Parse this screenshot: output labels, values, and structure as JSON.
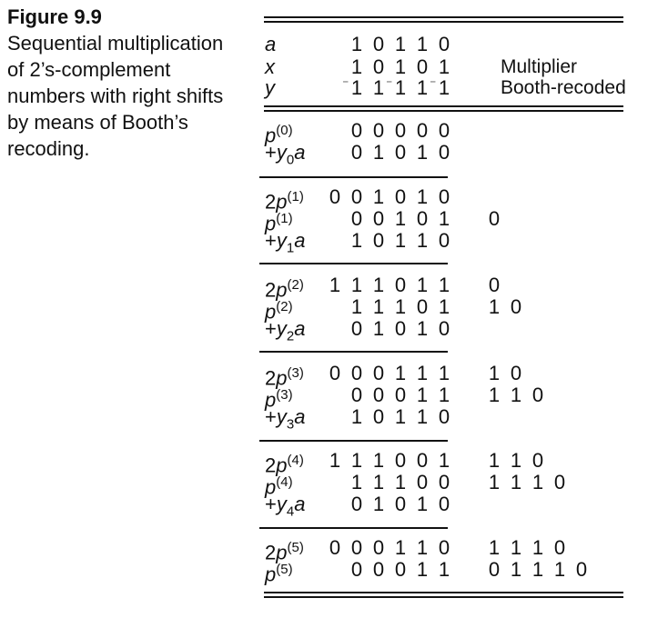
{
  "caption": {
    "figure_label": "Figure 9.9",
    "text": "Sequential multiplication of 2’s-complement numbers with right shifts by means of Booth’s recoding."
  },
  "header_rows": [
    {
      "label": "a",
      "digits": [
        "1",
        "0",
        "1",
        "1",
        "0"
      ],
      "note": ""
    },
    {
      "label": "x",
      "digits": [
        "1",
        "0",
        "1",
        "0",
        "1"
      ],
      "note": "Multiplier"
    },
    {
      "label": "y",
      "digits": [
        "⁻1",
        "1",
        "⁻1",
        "1",
        "⁻1"
      ],
      "note": "Booth-recoded"
    }
  ],
  "blocks": [
    {
      "rows": [
        {
          "label_prefix": "",
          "label_var": "p",
          "label_sup": "(0)",
          "label_sub": "",
          "label_tail": "",
          "digits": [
            "0",
            "0",
            "0",
            "0",
            "0"
          ],
          "extra": []
        },
        {
          "label_prefix": "+",
          "label_var": "y",
          "label_sup": "",
          "label_sub": "0",
          "label_tail": "a",
          "digits": [
            "0",
            "1",
            "0",
            "1",
            "0"
          ],
          "extra": []
        }
      ]
    },
    {
      "rows": [
        {
          "label_prefix": "2",
          "label_var": "p",
          "label_sup": "(1)",
          "label_sub": "",
          "label_tail": "",
          "digits": [
            "0",
            "0",
            "1",
            "0",
            "1",
            "0"
          ],
          "extra": []
        },
        {
          "label_prefix": "",
          "label_var": "p",
          "label_sup": "(1)",
          "label_sub": "",
          "label_tail": "",
          "digits": [
            "0",
            "0",
            "1",
            "0",
            "1"
          ],
          "extra": [
            "0"
          ]
        },
        {
          "label_prefix": "+",
          "label_var": "y",
          "label_sup": "",
          "label_sub": "1",
          "label_tail": "a",
          "digits": [
            "1",
            "0",
            "1",
            "1",
            "0"
          ],
          "extra": []
        }
      ]
    },
    {
      "rows": [
        {
          "label_prefix": "2",
          "label_var": "p",
          "label_sup": "(2)",
          "label_sub": "",
          "label_tail": "",
          "digits": [
            "1",
            "1",
            "1",
            "0",
            "1",
            "1"
          ],
          "extra": [
            "0"
          ]
        },
        {
          "label_prefix": "",
          "label_var": "p",
          "label_sup": "(2)",
          "label_sub": "",
          "label_tail": "",
          "digits": [
            "1",
            "1",
            "1",
            "0",
            "1"
          ],
          "extra": [
            "1",
            "0"
          ]
        },
        {
          "label_prefix": "+",
          "label_var": "y",
          "label_sup": "",
          "label_sub": "2",
          "label_tail": "a",
          "digits": [
            "0",
            "1",
            "0",
            "1",
            "0"
          ],
          "extra": []
        }
      ]
    },
    {
      "rows": [
        {
          "label_prefix": "2",
          "label_var": "p",
          "label_sup": "(3)",
          "label_sub": "",
          "label_tail": "",
          "digits": [
            "0",
            "0",
            "0",
            "1",
            "1",
            "1"
          ],
          "extra": [
            "1",
            "0"
          ]
        },
        {
          "label_prefix": "",
          "label_var": "p",
          "label_sup": "(3)",
          "label_sub": "",
          "label_tail": "",
          "digits": [
            "0",
            "0",
            "0",
            "1",
            "1"
          ],
          "extra": [
            "1",
            "1",
            "0"
          ]
        },
        {
          "label_prefix": "+",
          "label_var": "y",
          "label_sup": "",
          "label_sub": "3",
          "label_tail": "a",
          "digits": [
            "1",
            "0",
            "1",
            "1",
            "0"
          ],
          "extra": []
        }
      ]
    },
    {
      "rows": [
        {
          "label_prefix": "2",
          "label_var": "p",
          "label_sup": "(4)",
          "label_sub": "",
          "label_tail": "",
          "digits": [
            "1",
            "1",
            "1",
            "0",
            "0",
            "1"
          ],
          "extra": [
            "1",
            "1",
            "0"
          ]
        },
        {
          "label_prefix": "",
          "label_var": "p",
          "label_sup": "(4)",
          "label_sub": "",
          "label_tail": "",
          "digits": [
            "1",
            "1",
            "1",
            "0",
            "0"
          ],
          "extra": [
            "1",
            "1",
            "1",
            "0"
          ]
        },
        {
          "label_prefix": "+",
          "label_var": "y",
          "label_sup": "",
          "label_sub": "4",
          "label_tail": "a",
          "digits": [
            "0",
            "1",
            "0",
            "1",
            "0"
          ],
          "extra": []
        }
      ]
    },
    {
      "rows": [
        {
          "label_prefix": "2",
          "label_var": "p",
          "label_sup": "(5)",
          "label_sub": "",
          "label_tail": "",
          "digits": [
            "0",
            "0",
            "0",
            "1",
            "1",
            "0"
          ],
          "extra": [
            "1",
            "1",
            "1",
            "0"
          ]
        },
        {
          "label_prefix": "",
          "label_var": "p",
          "label_sup": "(5)",
          "label_sub": "",
          "label_tail": "",
          "digits": [
            "0",
            "0",
            "0",
            "1",
            "1"
          ],
          "extra": [
            "0",
            "1",
            "1",
            "1",
            "0"
          ]
        }
      ]
    }
  ]
}
